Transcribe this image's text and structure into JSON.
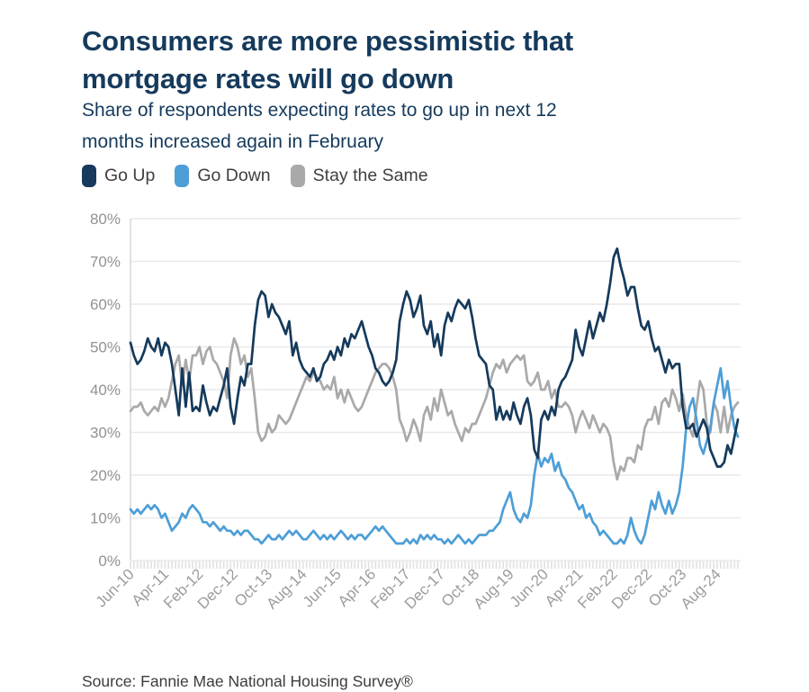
{
  "header": {
    "title_lines": [
      "Consumers are more pessimistic that",
      "mortgage rates will go down"
    ],
    "subtitle_lines": [
      "Share of respondents expecting rates to go up in next 12",
      "months increased again in February"
    ],
    "title_color": "#153a5c"
  },
  "legend": [
    {
      "label": "Go Up",
      "color": "#153a5c"
    },
    {
      "label": "Go Down",
      "color": "#4d9ed7"
    },
    {
      "label": "Stay the Same",
      "color": "#a9a9a9"
    }
  ],
  "source_note": "Source: Fannie Mae National Housing Survey®",
  "chart_data": {
    "type": "line",
    "title": "Consumers are more pessimistic that mortgage rates will go down",
    "xlabel": "",
    "ylabel": "",
    "frequency": "monthly",
    "x_start": "Jun-2010",
    "x_end": "Feb-2025",
    "x_tick_labels": [
      "Jun-10",
      "Apr-11",
      "Feb-12",
      "Dec-12",
      "Oct-13",
      "Aug-14",
      "Jun-15",
      "Apr-16",
      "Feb-17",
      "Dec-17",
      "Oct-18",
      "Aug-19",
      "Jun-20",
      "Apr-21",
      "Feb-22",
      "Dec-22",
      "Oct-23",
      "Aug-24"
    ],
    "x_tick_interval_months": 10,
    "ylim": [
      0,
      80
    ],
    "y_tick_labels": [
      "0%",
      "10%",
      "20%",
      "30%",
      "40%",
      "50%",
      "60%",
      "70%",
      "80%"
    ],
    "grid": "horizontal",
    "legend_position": "top",
    "series": [
      {
        "name": "Go Up",
        "color": "#153a5c",
        "values": [
          51,
          48,
          46,
          47,
          49,
          52,
          50,
          49,
          52,
          48,
          51,
          50,
          46,
          40,
          34,
          45,
          36,
          44,
          35,
          36,
          35,
          41,
          37,
          34,
          36,
          35,
          38,
          41,
          45,
          36,
          32,
          38,
          43,
          41,
          46,
          46,
          55,
          61,
          63,
          62,
          57,
          60,
          58,
          57,
          55,
          53,
          56,
          48,
          51,
          47,
          45,
          44,
          43,
          45,
          42,
          43,
          46,
          47,
          49,
          47,
          50,
          48,
          52,
          50,
          53,
          52,
          54,
          56,
          53,
          50,
          48,
          45,
          44,
          42,
          41,
          42,
          44,
          47,
          56,
          60,
          63,
          61,
          57,
          59,
          62,
          55,
          53,
          56,
          50,
          53,
          48,
          55,
          58,
          56,
          59,
          61,
          60,
          59,
          61,
          57,
          52,
          48,
          47,
          46,
          41,
          40,
          33,
          36,
          33,
          35,
          33,
          37,
          34,
          32,
          36,
          38,
          34,
          26,
          24,
          33,
          35,
          33,
          36,
          34,
          40,
          42,
          43,
          45,
          47,
          54,
          50,
          48,
          52,
          56,
          52,
          55,
          58,
          56,
          60,
          65,
          71,
          73,
          69,
          66,
          62,
          64,
          64,
          59,
          55,
          54,
          56,
          52,
          49,
          50,
          47,
          44,
          47,
          45,
          46,
          46,
          36,
          31,
          31,
          32,
          29,
          31,
          33,
          31,
          26,
          24,
          22,
          22,
          23,
          27,
          25,
          29,
          33
        ]
      },
      {
        "name": "Go Down",
        "color": "#4d9ed7",
        "values": [
          12,
          11,
          12,
          11,
          12,
          13,
          12,
          13,
          12,
          10,
          11,
          9,
          7,
          8,
          9,
          11,
          10,
          12,
          13,
          12,
          11,
          9,
          9,
          8,
          9,
          8,
          7,
          8,
          7,
          7,
          6,
          7,
          6,
          7,
          7,
          6,
          5,
          5,
          4,
          5,
          6,
          5,
          5,
          6,
          5,
          6,
          7,
          6,
          7,
          6,
          5,
          5,
          6,
          7,
          6,
          5,
          6,
          5,
          6,
          5,
          6,
          7,
          6,
          5,
          6,
          5,
          6,
          6,
          5,
          6,
          7,
          8,
          7,
          8,
          7,
          6,
          5,
          4,
          4,
          4,
          5,
          4,
          5,
          4,
          6,
          5,
          6,
          5,
          6,
          5,
          5,
          4,
          5,
          4,
          5,
          6,
          5,
          4,
          5,
          4,
          5,
          6,
          6,
          6,
          7,
          7,
          8,
          9,
          12,
          14,
          16,
          12,
          10,
          9,
          11,
          10,
          13,
          20,
          25,
          22,
          24,
          23,
          25,
          21,
          23,
          20,
          19,
          17,
          16,
          14,
          12,
          13,
          10,
          11,
          9,
          8,
          6,
          7,
          6,
          5,
          4,
          4,
          5,
          4,
          6,
          10,
          7,
          5,
          4,
          6,
          10,
          14,
          12,
          16,
          13,
          11,
          14,
          11,
          13,
          16,
          22,
          31,
          36,
          38,
          33,
          27,
          25,
          28,
          31,
          37,
          41,
          45,
          38,
          42,
          36,
          31,
          29
        ]
      },
      {
        "name": "Stay the Same",
        "color": "#a9a9a9",
        "values": [
          35,
          36,
          36,
          37,
          35,
          34,
          35,
          36,
          35,
          38,
          36,
          38,
          42,
          46,
          48,
          41,
          47,
          42,
          48,
          48,
          50,
          46,
          49,
          50,
          47,
          46,
          44,
          42,
          38,
          48,
          52,
          50,
          46,
          48,
          43,
          45,
          38,
          30,
          28,
          29,
          32,
          30,
          31,
          34,
          33,
          32,
          33,
          35,
          37,
          39,
          41,
          43,
          42,
          44,
          43,
          42,
          40,
          41,
          40,
          43,
          38,
          40,
          37,
          40,
          38,
          36,
          35,
          36,
          38,
          40,
          42,
          44,
          45,
          46,
          46,
          45,
          43,
          40,
          33,
          31,
          28,
          30,
          33,
          31,
          28,
          34,
          36,
          33,
          38,
          35,
          40,
          37,
          34,
          35,
          32,
          30,
          28,
          31,
          30,
          32,
          32,
          34,
          36,
          38,
          41,
          44,
          46,
          45,
          47,
          44,
          46,
          47,
          48,
          47,
          48,
          42,
          41,
          42,
          44,
          40,
          40,
          42,
          38,
          40,
          36,
          36,
          37,
          36,
          34,
          30,
          33,
          35,
          33,
          31,
          34,
          32,
          30,
          32,
          31,
          29,
          23,
          19,
          22,
          21,
          24,
          24,
          23,
          27,
          26,
          31,
          33,
          33,
          36,
          32,
          37,
          38,
          36,
          40,
          38,
          35,
          39,
          34,
          31,
          29,
          36,
          42,
          40,
          32,
          30,
          37,
          35,
          30,
          36,
          30,
          34,
          36,
          37
        ]
      }
    ]
  }
}
